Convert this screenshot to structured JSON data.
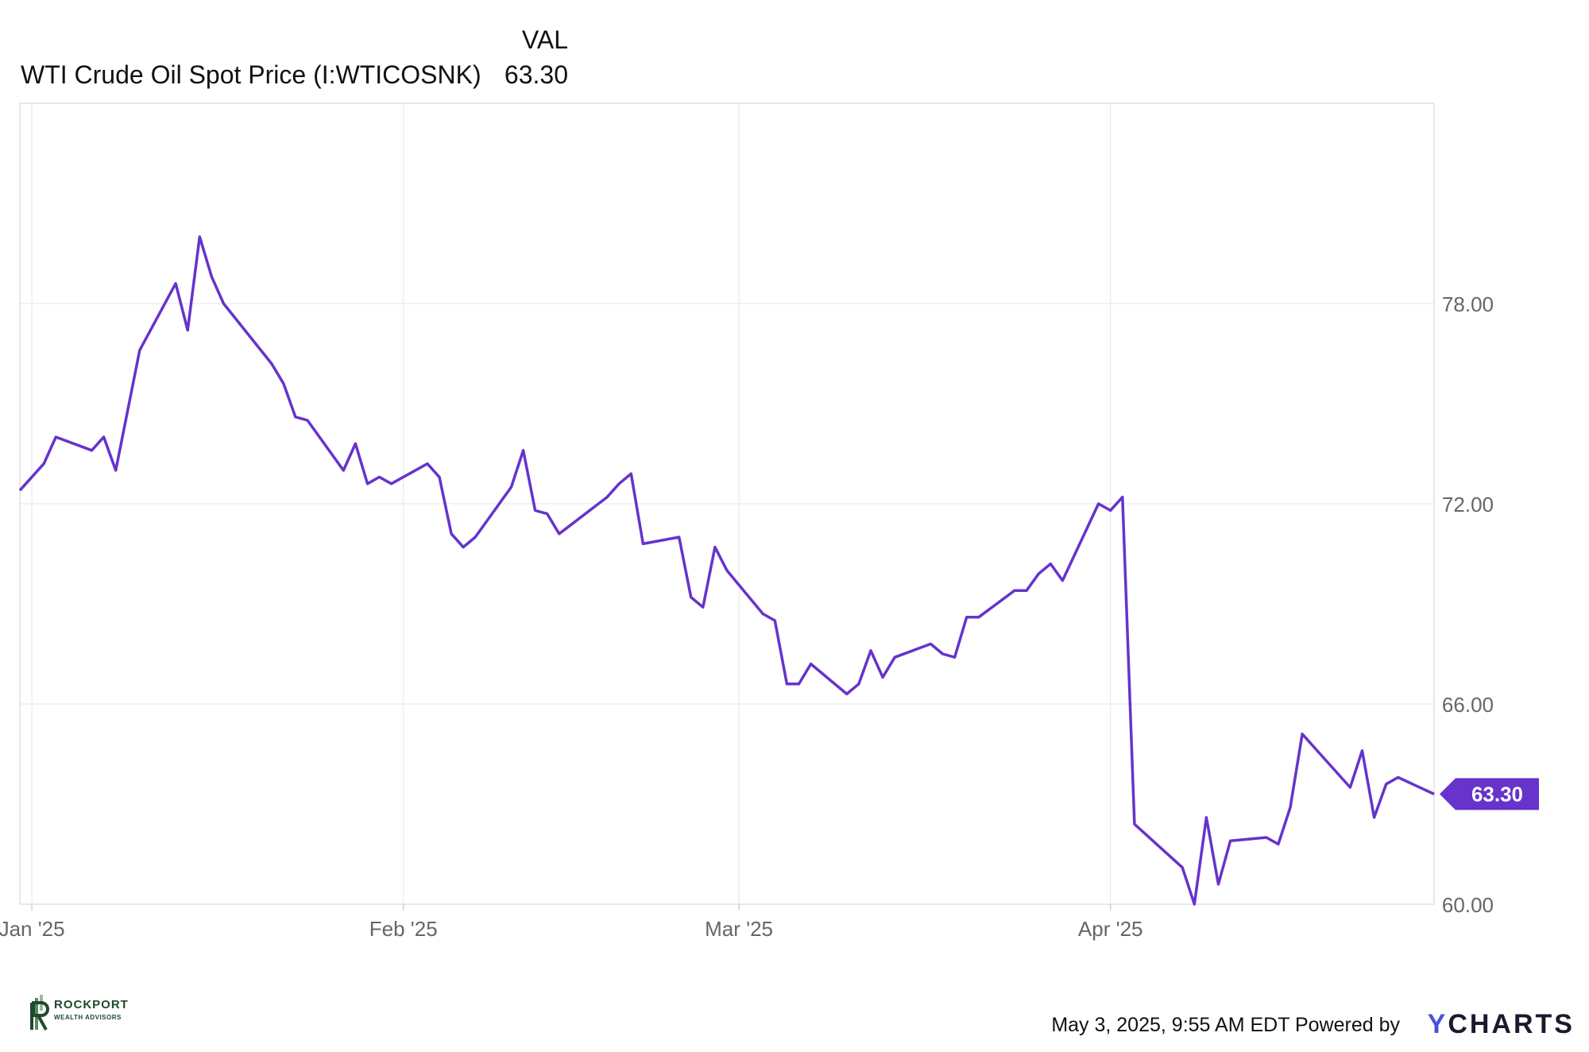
{
  "legend": {
    "column_header": "VAL",
    "series_name": "WTI Crude Oil Spot Price (I:WTICOSNK)",
    "series_value": "63.30"
  },
  "footer": {
    "timestamp": "May 3, 2025, 9:55 AM EDT",
    "powered_by": "Powered by",
    "brand": "CHARTS",
    "brand_initial": "Y"
  },
  "watermark": {
    "name": "ROCKPORT",
    "subtitle": "WEALTH ADVISORS"
  },
  "colors": {
    "line": "#6633cc",
    "grid": "#e6e6e6",
    "axis_text": "#666666"
  },
  "chart_data": {
    "type": "line",
    "title": "",
    "xlabel": "",
    "ylabel": "",
    "ylim": [
      60,
      84
    ],
    "yticks": [
      "60.00",
      "66.00",
      "72.00",
      "78.00"
    ],
    "xticks": [
      {
        "label": "Jan '25",
        "date": "2025-01-01"
      },
      {
        "label": "Feb '25",
        "date": "2025-02-01"
      },
      {
        "label": "Mar '25",
        "date": "2025-03-01"
      },
      {
        "label": "Apr '25",
        "date": "2025-04-01"
      }
    ],
    "last_value_label": "63.30",
    "series": [
      {
        "name": "WTI Crude Oil Spot Price (I:WTICOSNK)",
        "x": [
          "2024-12-31",
          "2025-01-02",
          "2025-01-03",
          "2025-01-06",
          "2025-01-07",
          "2025-01-08",
          "2025-01-10",
          "2025-01-13",
          "2025-01-14",
          "2025-01-15",
          "2025-01-16",
          "2025-01-17",
          "2025-01-21",
          "2025-01-22",
          "2025-01-23",
          "2025-01-24",
          "2025-01-27",
          "2025-01-28",
          "2025-01-29",
          "2025-01-30",
          "2025-01-31",
          "2025-02-03",
          "2025-02-04",
          "2025-02-05",
          "2025-02-06",
          "2025-02-07",
          "2025-02-10",
          "2025-02-11",
          "2025-02-12",
          "2025-02-13",
          "2025-02-14",
          "2025-02-18",
          "2025-02-19",
          "2025-02-20",
          "2025-02-21",
          "2025-02-24",
          "2025-02-25",
          "2025-02-26",
          "2025-02-27",
          "2025-02-28",
          "2025-03-03",
          "2025-03-04",
          "2025-03-05",
          "2025-03-06",
          "2025-03-07",
          "2025-03-10",
          "2025-03-11",
          "2025-03-12",
          "2025-03-13",
          "2025-03-14",
          "2025-03-17",
          "2025-03-18",
          "2025-03-19",
          "2025-03-20",
          "2025-03-21",
          "2025-03-24",
          "2025-03-25",
          "2025-03-26",
          "2025-03-27",
          "2025-03-28",
          "2025-03-31",
          "2025-04-01",
          "2025-04-02",
          "2025-04-03",
          "2025-04-07",
          "2025-04-08",
          "2025-04-09",
          "2025-04-10",
          "2025-04-11",
          "2025-04-14",
          "2025-04-15",
          "2025-04-16",
          "2025-04-17",
          "2025-04-21",
          "2025-04-22",
          "2025-04-23",
          "2025-04-24",
          "2025-04-25",
          "2025-04-28"
        ],
        "values": [
          72.4,
          73.2,
          74.0,
          73.6,
          74.0,
          73.0,
          76.6,
          78.6,
          77.2,
          80.0,
          78.8,
          78.0,
          76.2,
          75.6,
          74.6,
          74.5,
          73.0,
          73.8,
          72.6,
          72.8,
          72.6,
          73.2,
          72.8,
          71.1,
          70.7,
          71.0,
          72.5,
          73.6,
          71.8,
          71.7,
          71.1,
          72.2,
          72.6,
          72.9,
          70.8,
          71.0,
          69.2,
          68.9,
          70.7,
          70.0,
          68.7,
          68.5,
          66.6,
          66.6,
          67.2,
          66.3,
          66.6,
          67.6,
          66.8,
          67.4,
          67.8,
          67.5,
          67.4,
          68.6,
          68.6,
          69.4,
          69.4,
          69.9,
          70.2,
          69.7,
          72.0,
          71.8,
          72.2,
          62.4,
          61.1,
          60.0,
          62.6,
          60.6,
          61.9,
          62.0,
          61.8,
          62.9,
          65.1,
          63.5,
          64.6,
          62.6,
          63.6,
          63.8,
          63.3
        ]
      }
    ]
  }
}
